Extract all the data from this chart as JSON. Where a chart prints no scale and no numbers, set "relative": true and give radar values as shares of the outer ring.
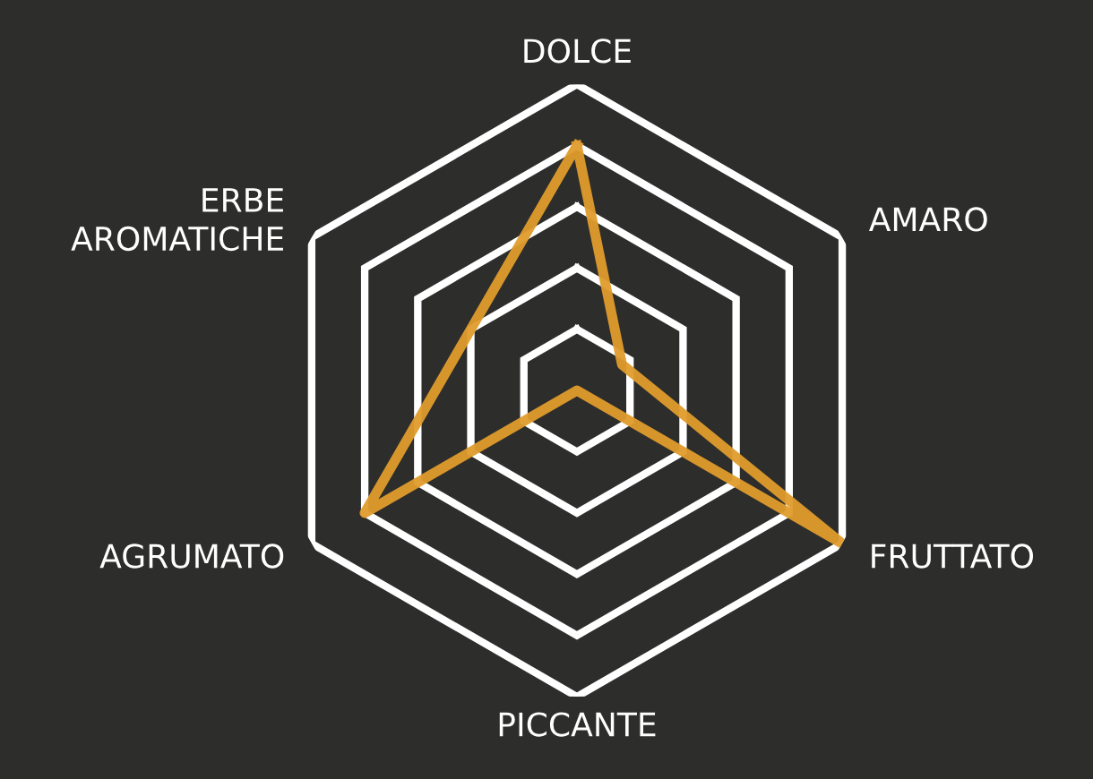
{
  "chart_data": {
    "type": "radar",
    "relative": true,
    "grid": true,
    "categories": [
      "DOLCE",
      "AMARO",
      "FRUTTATO",
      "PICCANTE",
      "AGRUMATO",
      "ERBE\nAROMATICHE"
    ],
    "series": [
      {
        "color": "#e09c2c",
        "values": [
          0.8,
          0.17,
          1.0,
          0.0,
          0.8,
          0.4
        ]
      }
    ]
  }
}
